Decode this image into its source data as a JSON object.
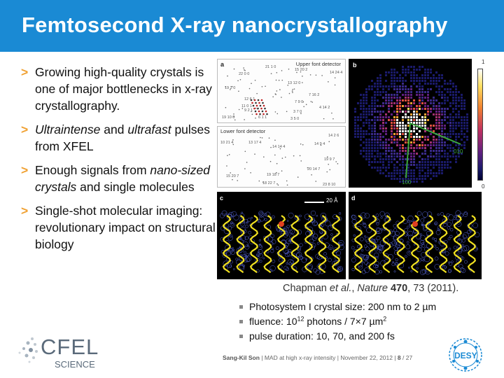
{
  "slide": {
    "title": "Femtosecond X-ray nanocrystallography"
  },
  "bullets": [
    {
      "marker": ">",
      "parts": [
        {
          "t": "Growing high-quality crystals is one of major bottlenecks in x-ray crystallography."
        }
      ]
    },
    {
      "marker": ">",
      "parts": [
        {
          "t": "Ultraintense",
          "i": true
        },
        {
          "t": " and "
        },
        {
          "t": "ultrafast",
          "i": true
        },
        {
          "t": " pulses from XFEL"
        }
      ]
    },
    {
      "marker": ">",
      "parts": [
        {
          "t": "Enough signals from "
        },
        {
          "t": "nano-sized crystals",
          "i": true
        },
        {
          "t": " and single molecules"
        }
      ]
    },
    {
      "marker": ">",
      "parts": [
        {
          "t": "Single-shot molecular imaging: revolutionary impact on structural biology"
        }
      ]
    }
  ],
  "figure": {
    "panel_a_label": "a",
    "panel_b_label": "b",
    "panel_c_label": "c",
    "panel_d_label": "d",
    "upper_detector": "Upper font detector",
    "lower_detector": "Lower font detector",
    "scale_bar": "20 Å",
    "colorbar_max": "1",
    "colorbar_min": "0",
    "axis_010": "010",
    "axis_100": "100",
    "upper_indices": [
      "21 1 0",
      "15 20 2",
      "14 24 4",
      "22 0 0",
      "13 12 0",
      "19 2 0",
      "7 16 2",
      "12 6 1",
      "7 9 0",
      "11 0 1",
      "4 14 2",
      "9 2 1",
      "3 7 0",
      "19 10 0",
      "6 1 1",
      "3 5 0"
    ],
    "lower_indices": [
      "14 2 6",
      "10 21 4",
      "13 17 4",
      "14 14 4",
      "14 9 4",
      "19 9 7",
      "20 14 7",
      "15 20 7",
      "18 22 7",
      "19 18 7",
      "23 8 10"
    ],
    "accent_green": "#3ca83c",
    "accent_orange": "#f0a030"
  },
  "caption": {
    "authors": "Chapman ",
    "etal": "et al.",
    "sep1": ", ",
    "journal": "Nature",
    "volume": " 470",
    "rest": ", 73 (2011)."
  },
  "subbullets": [
    {
      "pre": "Photosystem I crystal size: 200 nm to 2 µm",
      "sup": "",
      "post": ""
    },
    {
      "pre": "fluence: 10",
      "sup": "12",
      "post": " photons / 7×7 µm",
      "sup2": "2"
    },
    {
      "pre": "pulse duration: 10, 70, and 200 fs",
      "sup": "",
      "post": ""
    }
  ],
  "footer": {
    "author": "Sang-Kil Son",
    "talk": "  |  MAD at high x-ray intensity  |  November 22, 2012  |  ",
    "page": "8",
    "total": "  / 27"
  },
  "logos": {
    "cfel": "CFEL",
    "cfel_sub": "SCIENCE",
    "desy": "DESY"
  },
  "colors": {
    "title_bar": "#1a8ad4",
    "bullet_marker": "#f0a030"
  }
}
